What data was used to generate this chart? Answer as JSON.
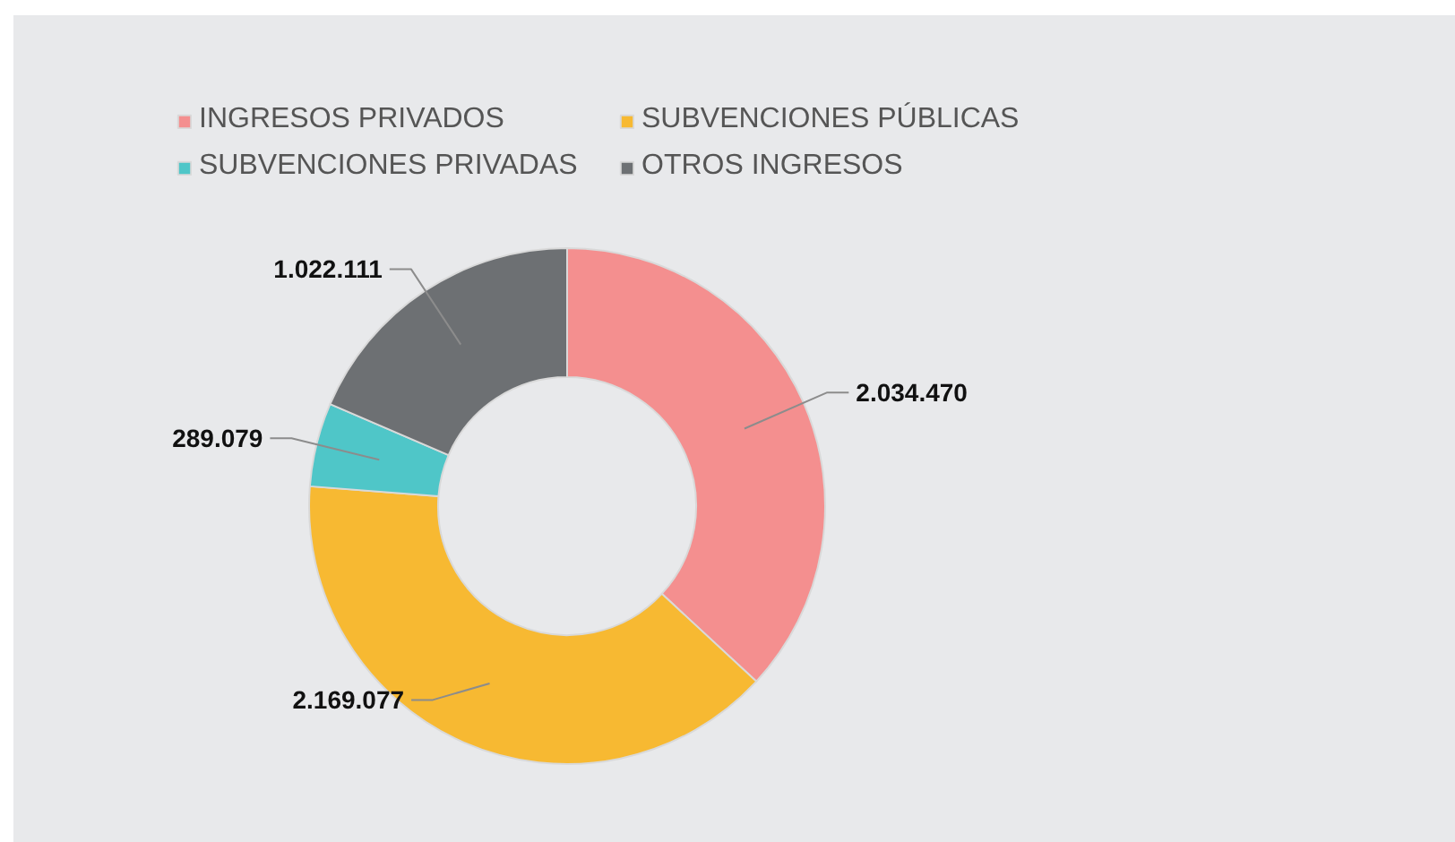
{
  "chart_data": {
    "type": "donut",
    "categories": [
      "INGRESOS PRIVADOS",
      "SUBVENCIONES PÚBLICAS",
      "SUBVENCIONES PRIVADAS",
      "OTROS INGRESOS"
    ],
    "values": [
      2034470,
      2169077,
      289079,
      1022111
    ],
    "colors": [
      "#f48f8f",
      "#f7b932",
      "#4fc6c8",
      "#6d7073"
    ],
    "value_labels": [
      "2.034.470",
      "2.169.077",
      "289.079",
      "1.022.111"
    ],
    "legend": "top"
  }
}
